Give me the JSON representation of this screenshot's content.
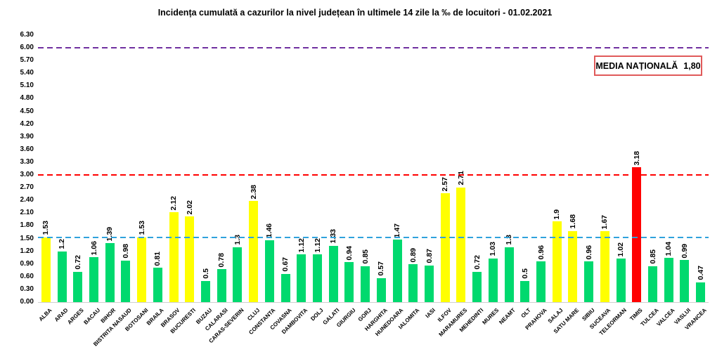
{
  "title": "Incidența cumulată a cazurilor la nivel județean în ultimele 14 zile la ‰ de locuitori - 01.02.2021",
  "annotation": {
    "label": "MEDIA NAȚIONALĂ",
    "value": "1,80"
  },
  "chart_data": {
    "type": "bar",
    "title": "Incidența cumulată a cazurilor la nivel județean în ultimele 14 zile la ‰ de locuitori - 01.02.2021",
    "xlabel": "",
    "ylabel": "",
    "ylim": [
      0,
      6.3
    ],
    "grid": false,
    "legend": "none",
    "categories": [
      "ALBA",
      "ARAD",
      "ARGES",
      "BACAU",
      "BIHOR",
      "BISTRITA NASAUD",
      "BOTOSANI",
      "BRAILA",
      "BRASOV",
      "BUCURESTI",
      "BUZAU",
      "CALARASI",
      "CARAS-SEVERIN",
      "CLUJ",
      "CONSTANTA",
      "COVASNA",
      "DAMBOVITA",
      "DOLJ",
      "GALATI",
      "GIURGIU",
      "GORJ",
      "HARGHITA",
      "HUNEDOARA",
      "IALOMITA",
      "IASI",
      "ILFOV",
      "MARAMURES",
      "MEHEDINTI",
      "MURES",
      "NEAMT",
      "OLT",
      "PRAHOVA",
      "SALAJ",
      "SATU MARE",
      "SIBIU",
      "SUCEAVA",
      "TELEORMAN",
      "TIMIS",
      "TULCEA",
      "VALCEA",
      "VASLUI",
      "VRANCEA"
    ],
    "values": [
      1.53,
      1.2,
      0.72,
      1.06,
      1.39,
      0.98,
      1.53,
      0.81,
      2.12,
      2.02,
      0.5,
      0.78,
      1.3,
      2.38,
      1.46,
      0.67,
      1.12,
      1.12,
      1.33,
      0.94,
      0.85,
      0.57,
      1.47,
      0.89,
      0.87,
      2.57,
      2.71,
      0.72,
      1.03,
      1.3,
      0.5,
      0.96,
      1.9,
      1.68,
      0.96,
      1.67,
      1.02,
      3.18,
      0.85,
      1.04,
      0.99,
      0.47
    ],
    "value_labels": [
      "1.53",
      "1.2",
      "0.72",
      "1.06",
      "1.39",
      "0.98",
      "1.53",
      "0.81",
      "2.12",
      "2.02",
      "0.5",
      "0.78",
      "1.3",
      "2.38",
      "1.46",
      "0.67",
      "1.12",
      "1.12",
      "1.33",
      "0.94",
      "0.85",
      "0.57",
      "1.47",
      "0.89",
      "0.87",
      "2.57",
      "2.71",
      "0.72",
      "1.03",
      "1.3",
      "0.5",
      "0.96",
      "1.9",
      "1.68",
      "0.96",
      "1.67",
      "1.02",
      "3.18",
      "0.85",
      "1.04",
      "0.99",
      "0.47"
    ],
    "y_ticks": [
      "6.30",
      "6.00",
      "5.70",
      "5.40",
      "5.10",
      "4.80",
      "4.50",
      "4.20",
      "3.90",
      "3.60",
      "3.30",
      "3.00",
      "2.70",
      "2.40",
      "2.10",
      "1.80",
      "1.50",
      "1.20",
      "0.90",
      "0.60",
      "0.30",
      "0.00"
    ],
    "reference_lines": [
      {
        "name": "purple-line",
        "value": 6.0,
        "color": "#7030a0",
        "style": "dashed"
      },
      {
        "name": "red-line",
        "value": 3.0,
        "color": "#ff0000",
        "style": "dashed"
      },
      {
        "name": "blue-line",
        "value": 1.52,
        "color": "#2fa2dc",
        "style": "dashed"
      }
    ],
    "colors": {
      "bar_low": "#00d96e",
      "bar_mid": "#ffff00",
      "bar_high": "#ff0000",
      "threshold_mid": 1.5,
      "threshold_high": 3.0
    }
  }
}
